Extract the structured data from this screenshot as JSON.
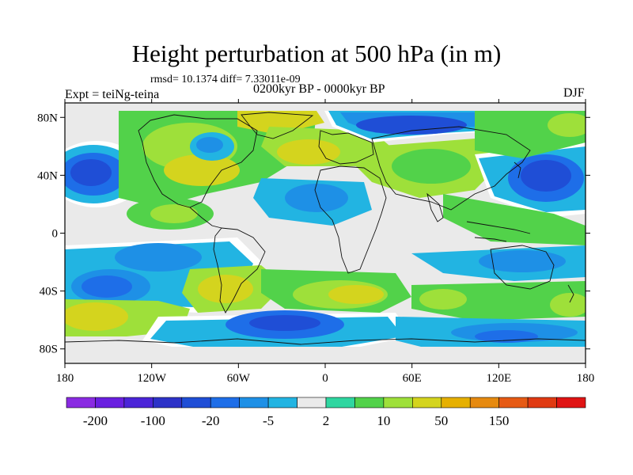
{
  "title": "Height perturbation at 500 hPa (in m)",
  "stats_text": "rmsd= 10.1374 diff= 7.33011e-09",
  "experiment_label": "Expt = teiNg-teina",
  "period_label": "0200kyr BP - 0000kyr BP",
  "season_label": "DJF",
  "lat_ticks": [
    {
      "label": "80N",
      "value": 80
    },
    {
      "label": "40N",
      "value": 40
    },
    {
      "label": "0",
      "value": 0
    },
    {
      "label": "40S",
      "value": -40
    },
    {
      "label": "80S",
      "value": -80
    }
  ],
  "lon_ticks": [
    {
      "label": "180",
      "value": -180
    },
    {
      "label": "120W",
      "value": -120
    },
    {
      "label": "60W",
      "value": -60
    },
    {
      "label": "0",
      "value": 0
    },
    {
      "label": "60E",
      "value": 60
    },
    {
      "label": "120E",
      "value": 120
    },
    {
      "label": "180",
      "value": 180
    }
  ],
  "colorbar": {
    "colors": [
      "#8a2be2",
      "#6a1fe0",
      "#4b24d8",
      "#2d32c8",
      "#1f4ed6",
      "#1e6ee8",
      "#1e90e6",
      "#22b4e2",
      "#eaeaea",
      "#2fd6a0",
      "#52d24a",
      "#9ee03a",
      "#d4d41e",
      "#e6b000",
      "#e68a10",
      "#e65a14",
      "#e03a12",
      "#e01414"
    ],
    "labels": [
      {
        "text": "-200",
        "index": 1
      },
      {
        "text": "-100",
        "index": 3
      },
      {
        "text": "-20",
        "index": 5
      },
      {
        "text": "-5",
        "index": 7
      },
      {
        "text": "2",
        "index": 9
      },
      {
        "text": "10",
        "index": 11
      },
      {
        "text": "50",
        "index": 13
      },
      {
        "text": "150",
        "index": 15
      }
    ]
  },
  "palette": {
    "neutral": "#eaeaea",
    "cyan": "#22b4e2",
    "blue_light": "#1e90e6",
    "blue": "#1e6ee8",
    "blue_dark": "#1f4ed6",
    "blue_deep": "#2d32c8",
    "teal": "#2fd6a0",
    "green": "#52d24a",
    "yellowgreen": "#9ee03a",
    "yellow": "#d4d41e",
    "orange": "#e6b000",
    "white": "#ffffff",
    "coast": "#111111"
  }
}
